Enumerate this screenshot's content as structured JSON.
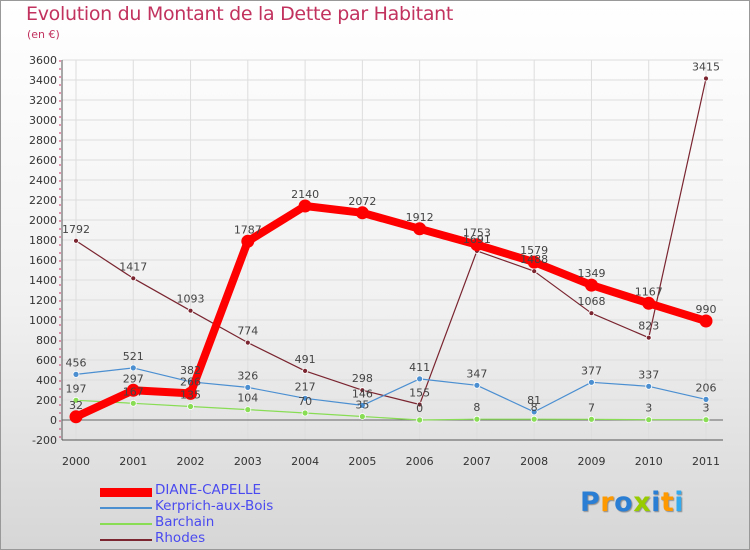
{
  "title": "Evolution du Montant de la Dette par Habitant",
  "subtitle": "(en €)",
  "logo": "Proxiti",
  "logo_colors": [
    "#2a7fd4",
    "#ff9900",
    "#2a7fd4",
    "#99cc00",
    "#2a7fd4",
    "#ff9900",
    "#33aaee"
  ],
  "chart_data": {
    "type": "line",
    "title": "Evolution du Montant de la Dette par Habitant",
    "subtitle": "(en €)",
    "xlabel": "",
    "ylabel": "",
    "x": [
      "2000",
      "2001",
      "2002",
      "2003",
      "2004",
      "2005",
      "2006",
      "2007",
      "2008",
      "2009",
      "2010",
      "2011"
    ],
    "ylim": [
      -200,
      3600
    ],
    "ytick_step": 200,
    "grid": true,
    "legend_position": "bottom-left",
    "series": [
      {
        "name": "DIANE-CAPELLE",
        "color": "#ff0000",
        "values": [
          32,
          297,
          266,
          1787,
          2140,
          2072,
          1912,
          1753,
          1579,
          1349,
          1167,
          990
        ],
        "labels": [
          "32",
          "297",
          "266",
          "1787",
          "2140",
          "2072",
          "1912",
          "1753",
          "1579",
          "1349",
          "1167",
          "990"
        ]
      },
      {
        "name": "Kerprich-aux-Bois",
        "color": "#4b8fd1",
        "values": [
          456,
          521,
          382,
          326,
          217,
          146,
          411,
          347,
          81,
          377,
          337,
          206
        ],
        "labels": [
          "456",
          "521",
          "382",
          "326",
          "217",
          "146",
          "411",
          "347",
          "81",
          "377",
          "337",
          "206"
        ]
      },
      {
        "name": "Barchain",
        "color": "#88dd55",
        "values": [
          197,
          167,
          135,
          104,
          70,
          35,
          0,
          8,
          8,
          7,
          3,
          3
        ],
        "labels": [
          "197",
          "167",
          "135",
          "104",
          "70",
          "35",
          "0",
          "8",
          "8",
          "7",
          "3",
          "3"
        ]
      },
      {
        "name": "Rhodes",
        "color": "#7a2530",
        "values": [
          1792,
          1417,
          1093,
          774,
          491,
          298,
          155,
          1691,
          1488,
          1068,
          823,
          3415
        ],
        "labels": [
          "1792",
          "1417",
          "1093",
          "774",
          "491",
          "298",
          "155",
          "1691",
          "1488",
          "1068",
          "823",
          "3415"
        ]
      }
    ]
  }
}
